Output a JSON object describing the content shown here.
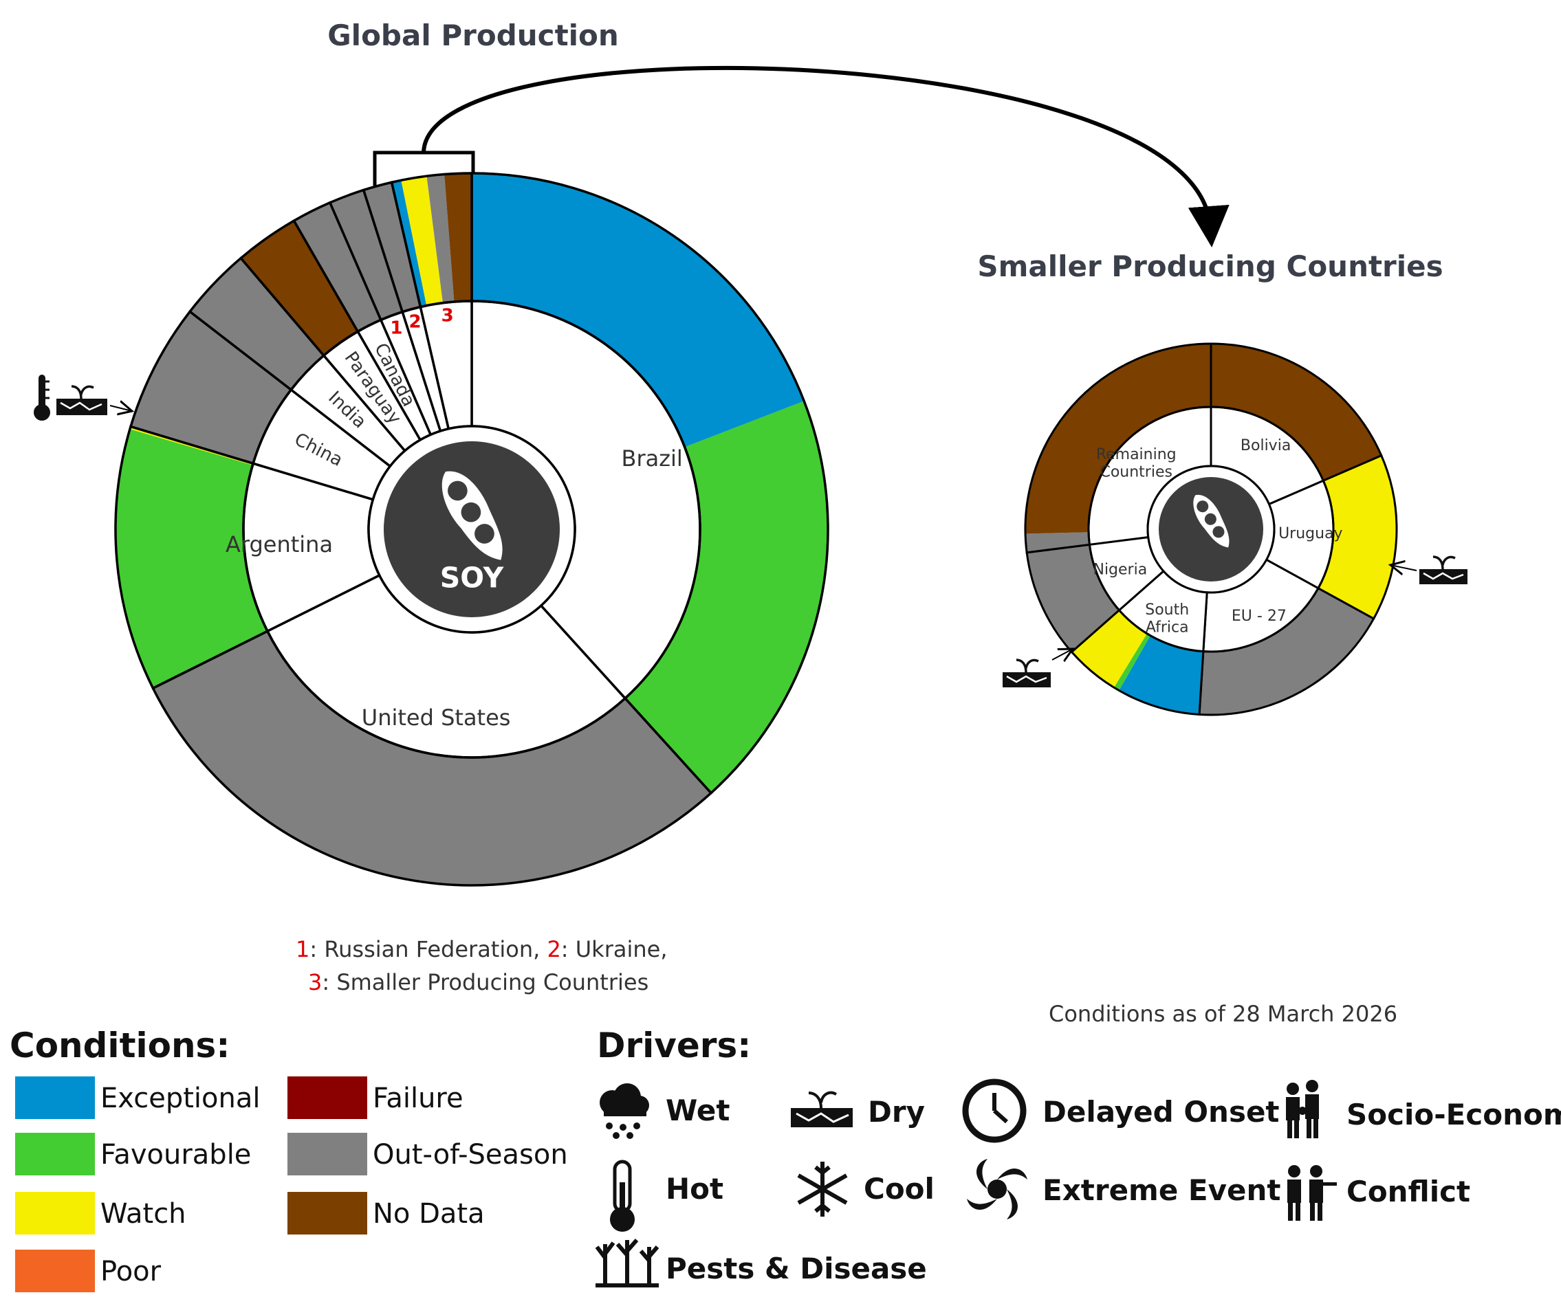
{
  "chart_data": [
    {
      "type": "pie",
      "title": "Global Production",
      "center_label": "SOY",
      "slices": [
        {
          "label": "Brazil",
          "value": 38.2,
          "conditions": [
            {
              "name": "Exceptional",
              "share": 0.5
            },
            {
              "name": "Favourable",
              "share": 0.5
            }
          ]
        },
        {
          "label": "United States",
          "value": 29.3,
          "conditions": [
            {
              "name": "Out-of-Season",
              "share": 1.0
            }
          ]
        },
        {
          "label": "Argentina",
          "value": 12.0,
          "conditions": [
            {
              "name": "Favourable",
              "share": 0.99
            },
            {
              "name": "Watch",
              "share": 0.01
            }
          ]
        },
        {
          "label": "China",
          "value": 5.8,
          "conditions": [
            {
              "name": "Out-of-Season",
              "share": 1.0
            }
          ]
        },
        {
          "label": "India",
          "value": 3.3,
          "conditions": [
            {
              "name": "Out-of-Season",
              "share": 1.0
            }
          ]
        },
        {
          "label": "Paraguay",
          "value": 2.9,
          "conditions": [
            {
              "name": "No Data",
              "share": 1.0
            }
          ]
        },
        {
          "label": "Canada",
          "value": 1.8,
          "conditions": [
            {
              "name": "Out-of-Season",
              "share": 1.0
            }
          ]
        },
        {
          "label": "1",
          "value": 1.6,
          "conditions": [
            {
              "name": "Out-of-Season",
              "share": 1.0
            }
          ]
        },
        {
          "label": "2",
          "value": 1.3,
          "conditions": [
            {
              "name": "Out-of-Season",
              "share": 1.0
            }
          ]
        },
        {
          "label": "3",
          "value": 3.6,
          "conditions": [
            {
              "name": "Exceptional",
              "share": 0.12
            },
            {
              "name": "Watch",
              "share": 0.32
            },
            {
              "name": "Out-of-Season",
              "share": 0.22
            },
            {
              "name": "No Data",
              "share": 0.34
            }
          ]
        }
      ],
      "footnote": [
        {
          "num": "1",
          "text": ": Russian Federation, "
        },
        {
          "num": "2",
          "text": ": Ukraine,"
        },
        {
          "num": "3",
          "text": ": Smaller Producing Countries"
        }
      ]
    },
    {
      "type": "pie",
      "title": "Smaller Producing Countries",
      "slices": [
        {
          "label": "Bolivia",
          "value": 18.5,
          "conditions": [
            {
              "name": "No Data",
              "share": 1.0
            }
          ]
        },
        {
          "label": "Uruguay",
          "value": 14.5,
          "conditions": [
            {
              "name": "Watch",
              "share": 1.0
            }
          ]
        },
        {
          "label": "EU - 27",
          "value": 18.0,
          "conditions": [
            {
              "name": "Out-of-Season",
              "share": 1.0
            }
          ]
        },
        {
          "label": "South Africa",
          "value": 12.5,
          "conditions": [
            {
              "name": "Exceptional",
              "share": 0.58
            },
            {
              "name": "Favourable",
              "share": 0.04
            },
            {
              "name": "Watch",
              "share": 0.38
            }
          ]
        },
        {
          "label": "Nigeria",
          "value": 9.5,
          "conditions": [
            {
              "name": "Out-of-Season",
              "share": 1.0
            }
          ]
        },
        {
          "label": "Remaining Countries",
          "value": 27.0,
          "conditions": [
            {
              "name": "Out-of-Season",
              "share": 0.06
            },
            {
              "name": "No Data",
              "share": 0.94
            }
          ]
        }
      ]
    }
  ],
  "conditions_date": "Conditions as of 28 March 2026",
  "legend": {
    "conditions_title": "Conditions:",
    "conditions": [
      {
        "name": "Exceptional",
        "color": "#0090cf"
      },
      {
        "name": "Favourable",
        "color": "#44cc33"
      },
      {
        "name": "Watch",
        "color": "#f5ee00"
      },
      {
        "name": "Poor",
        "color": "#f26522"
      },
      {
        "name": "Failure",
        "color": "#8b0000"
      },
      {
        "name": "Out-of-Season",
        "color": "#808080"
      },
      {
        "name": "No Data",
        "color": "#7b3f00"
      }
    ],
    "drivers_title": "Drivers:",
    "drivers": [
      {
        "name": "Wet",
        "icon": "rain-cloud-icon"
      },
      {
        "name": "Dry",
        "icon": "dry-soil-icon"
      },
      {
        "name": "Delayed Onset",
        "icon": "clock-icon"
      },
      {
        "name": "Socio-Economic",
        "icon": "people-icon"
      },
      {
        "name": "Hot",
        "icon": "thermometer-icon"
      },
      {
        "name": "Cool",
        "icon": "snowflake-icon"
      },
      {
        "name": "Extreme Event",
        "icon": "cyclone-icon"
      },
      {
        "name": "Conflict",
        "icon": "soldiers-icon"
      },
      {
        "name": "Pests & Disease",
        "icon": "dead-trees-icon"
      }
    ]
  },
  "drivers_marked": [
    {
      "country": "Argentina",
      "icons": [
        "thermometer-icon",
        "dry-soil-icon"
      ]
    },
    {
      "country": "Uruguay",
      "icons": [
        "dry-soil-icon"
      ]
    },
    {
      "country": "South Africa",
      "icons": [
        "dry-soil-icon"
      ]
    }
  ]
}
